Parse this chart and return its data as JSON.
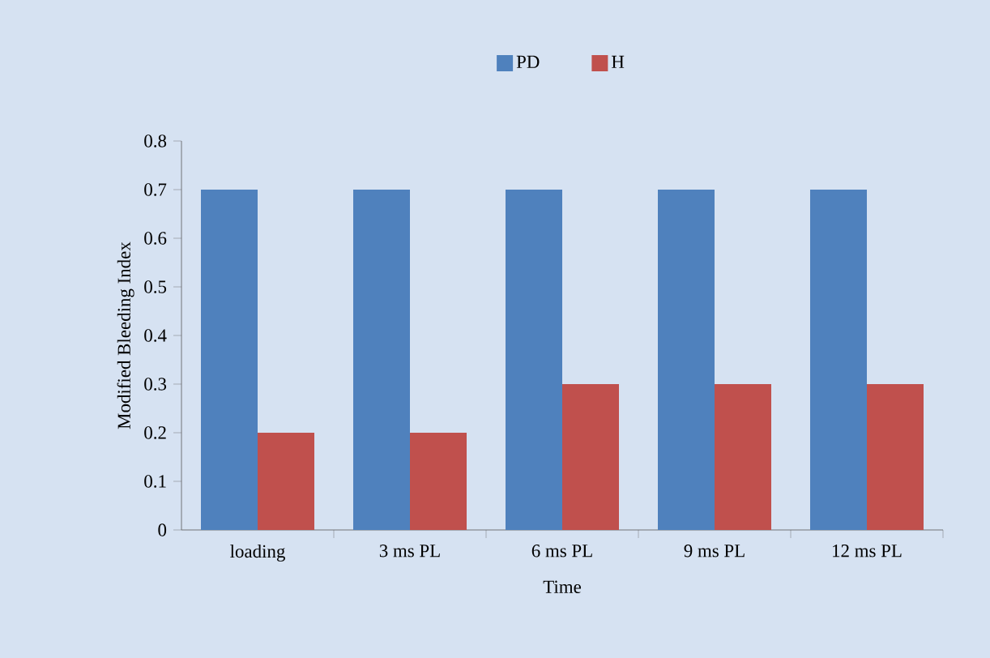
{
  "chart_data": {
    "type": "bar",
    "xlabel": "Time",
    "ylabel": "Modified Bleeding Index",
    "categories": [
      "loading",
      "3 ms PL",
      "6 ms PL",
      "9 ms PL",
      "12 ms PL"
    ],
    "series": [
      {
        "name": "PD",
        "color": "#4f81bd",
        "values": [
          0.7,
          0.7,
          0.7,
          0.7,
          0.7
        ]
      },
      {
        "name": "H",
        "color": "#c0504d",
        "values": [
          0.2,
          0.2,
          0.3,
          0.3,
          0.3
        ]
      }
    ],
    "ylim": [
      0,
      0.8
    ],
    "yticks": [
      0,
      0.1,
      0.2,
      0.3,
      0.4,
      0.5,
      0.6,
      0.7,
      0.8
    ],
    "legend": "top",
    "grid": false
  }
}
